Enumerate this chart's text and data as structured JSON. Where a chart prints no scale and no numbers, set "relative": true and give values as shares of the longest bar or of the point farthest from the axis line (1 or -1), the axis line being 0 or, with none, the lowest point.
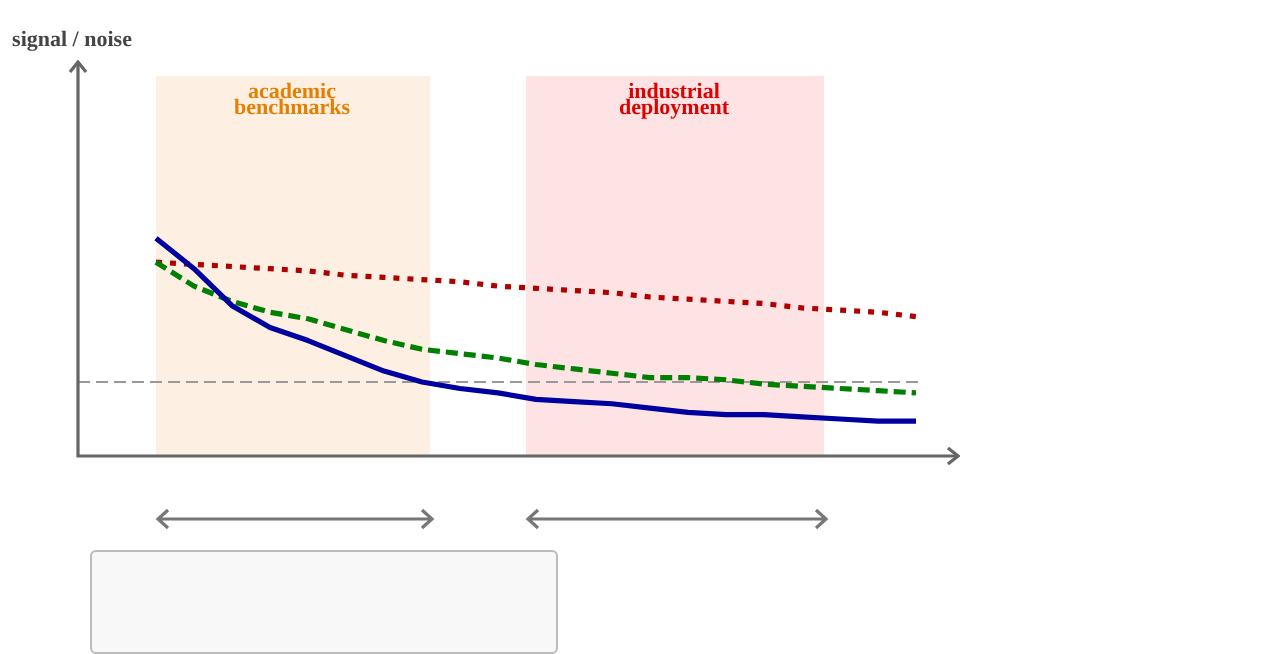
{
  "chart_data": {
    "type": "line",
    "relative": true,
    "annotations": [
      "signal / noise",
      "academic benchmarks",
      "industrial deployment"
    ],
    "categories": [
      null,
      null,
      null,
      null,
      null,
      null,
      null,
      null,
      null,
      null,
      null,
      null,
      null,
      null,
      null,
      null,
      null,
      null,
      null,
      null,
      null
    ],
    "legend": false,
    "marker": "none",
    "series": [
      {
        "color": "#0000a0",
        "line_style": "solid",
        "values": [
          1.0,
          0.86,
          0.69,
          0.59,
          0.53,
          0.46,
          0.39,
          0.34,
          0.31,
          0.29,
          0.26,
          0.25,
          0.24,
          0.22,
          0.2,
          0.19,
          0.19,
          0.18,
          0.17,
          0.16,
          0.16
        ]
      },
      {
        "color": "#008000",
        "line_style": "dashed",
        "values": [
          0.89,
          0.78,
          0.71,
          0.66,
          0.63,
          0.58,
          0.53,
          0.49,
          0.47,
          0.45,
          0.42,
          0.4,
          0.38,
          0.36,
          0.36,
          0.35,
          0.33,
          0.32,
          0.31,
          0.3,
          0.29
        ]
      },
      {
        "color": "#b00000",
        "line_style": "dotted",
        "values": [
          0.89,
          0.88,
          0.87,
          0.86,
          0.85,
          0.83,
          0.82,
          0.81,
          0.8,
          0.78,
          0.77,
          0.76,
          0.75,
          0.73,
          0.72,
          0.71,
          0.7,
          0.68,
          0.67,
          0.66,
          0.64
        ]
      }
    ],
    "ref_lines": [
      {
        "axis": "y",
        "value": 0.34,
        "color": "#999999",
        "line_style": "dashed"
      }
    ]
  }
}
